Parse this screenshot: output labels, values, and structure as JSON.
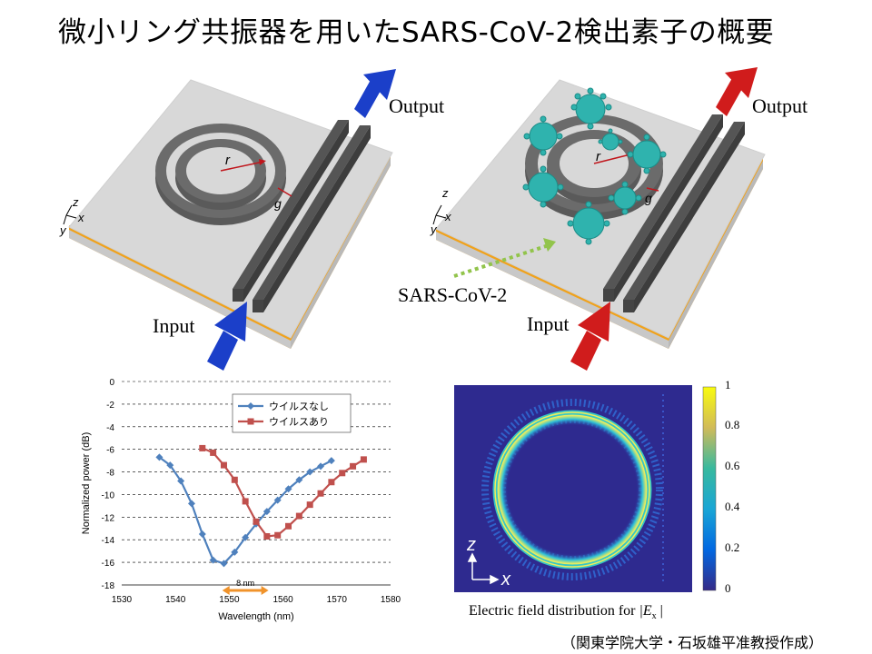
{
  "title": "微小リング共振器を用いたSARS-CoV-2検出素子の概要",
  "diagram_left": {
    "output_label": "Output",
    "input_label": "Input",
    "radius_label": "r",
    "gap_label": "g",
    "axes": {
      "z": "z",
      "x": "x",
      "y": "y"
    },
    "arrow_color": "#1b3fc9"
  },
  "diagram_right": {
    "output_label": "Output",
    "input_label": "Input",
    "radius_label": "r",
    "gap_label": "g",
    "virus_label": "SARS-CoV-2",
    "axes": {
      "z": "z",
      "x": "x",
      "y": "y"
    },
    "arrow_color": "#d01c1c",
    "virus_color": "#2fb3ae"
  },
  "chart_data": {
    "type": "line",
    "xlabel": "Wavelength  (nm)",
    "ylabel": "Normalized  power  (dB)",
    "xlim": [
      1530,
      1580
    ],
    "ylim": [
      -18,
      0
    ],
    "xticks": [
      1530,
      1540,
      1550,
      1560,
      1570,
      1580
    ],
    "yticks": [
      0,
      -2,
      -4,
      -6,
      -8,
      -10,
      -12,
      -14,
      -16,
      -18
    ],
    "grid": "horizontal dashed",
    "legend_position": "top-right",
    "annotation": "8 nm",
    "series": [
      {
        "name": "ウイルスなし",
        "color": "#4f81bd",
        "marker": "diamond",
        "x": [
          1537,
          1539,
          1541,
          1543,
          1545,
          1547,
          1549,
          1551,
          1553,
          1555,
          1557,
          1559,
          1561,
          1563,
          1565,
          1567,
          1569
        ],
        "y": [
          -6.7,
          -7.4,
          -8.8,
          -10.8,
          -13.5,
          -15.8,
          -16.1,
          -15.1,
          -13.8,
          -12.6,
          -11.5,
          -10.5,
          -9.5,
          -8.7,
          -8.0,
          -7.5,
          -7.0
        ]
      },
      {
        "name": "ウイルスあり",
        "color": "#c0504d",
        "marker": "square",
        "x": [
          1545,
          1547,
          1549,
          1551,
          1553,
          1555,
          1557,
          1559,
          1561,
          1563,
          1565,
          1567,
          1569,
          1571,
          1573,
          1575
        ],
        "y": [
          -5.9,
          -6.3,
          -7.4,
          -8.7,
          -10.6,
          -12.4,
          -13.7,
          -13.6,
          -12.8,
          -11.9,
          -10.9,
          -9.9,
          -8.9,
          -8.1,
          -7.5,
          -6.9
        ]
      }
    ]
  },
  "field_map": {
    "caption_prefix": "Electric  field  distribution  for ",
    "caption_var": "|E",
    "caption_sub": "x",
    "caption_suffix": " |",
    "axis_z": "z",
    "axis_x": "x",
    "colorbar_ticks": [
      "1",
      "0.8",
      "0.6",
      "0.4",
      "0.2",
      "0"
    ]
  },
  "credit": "（関東学院大学・石坂雄平准教授作成）"
}
